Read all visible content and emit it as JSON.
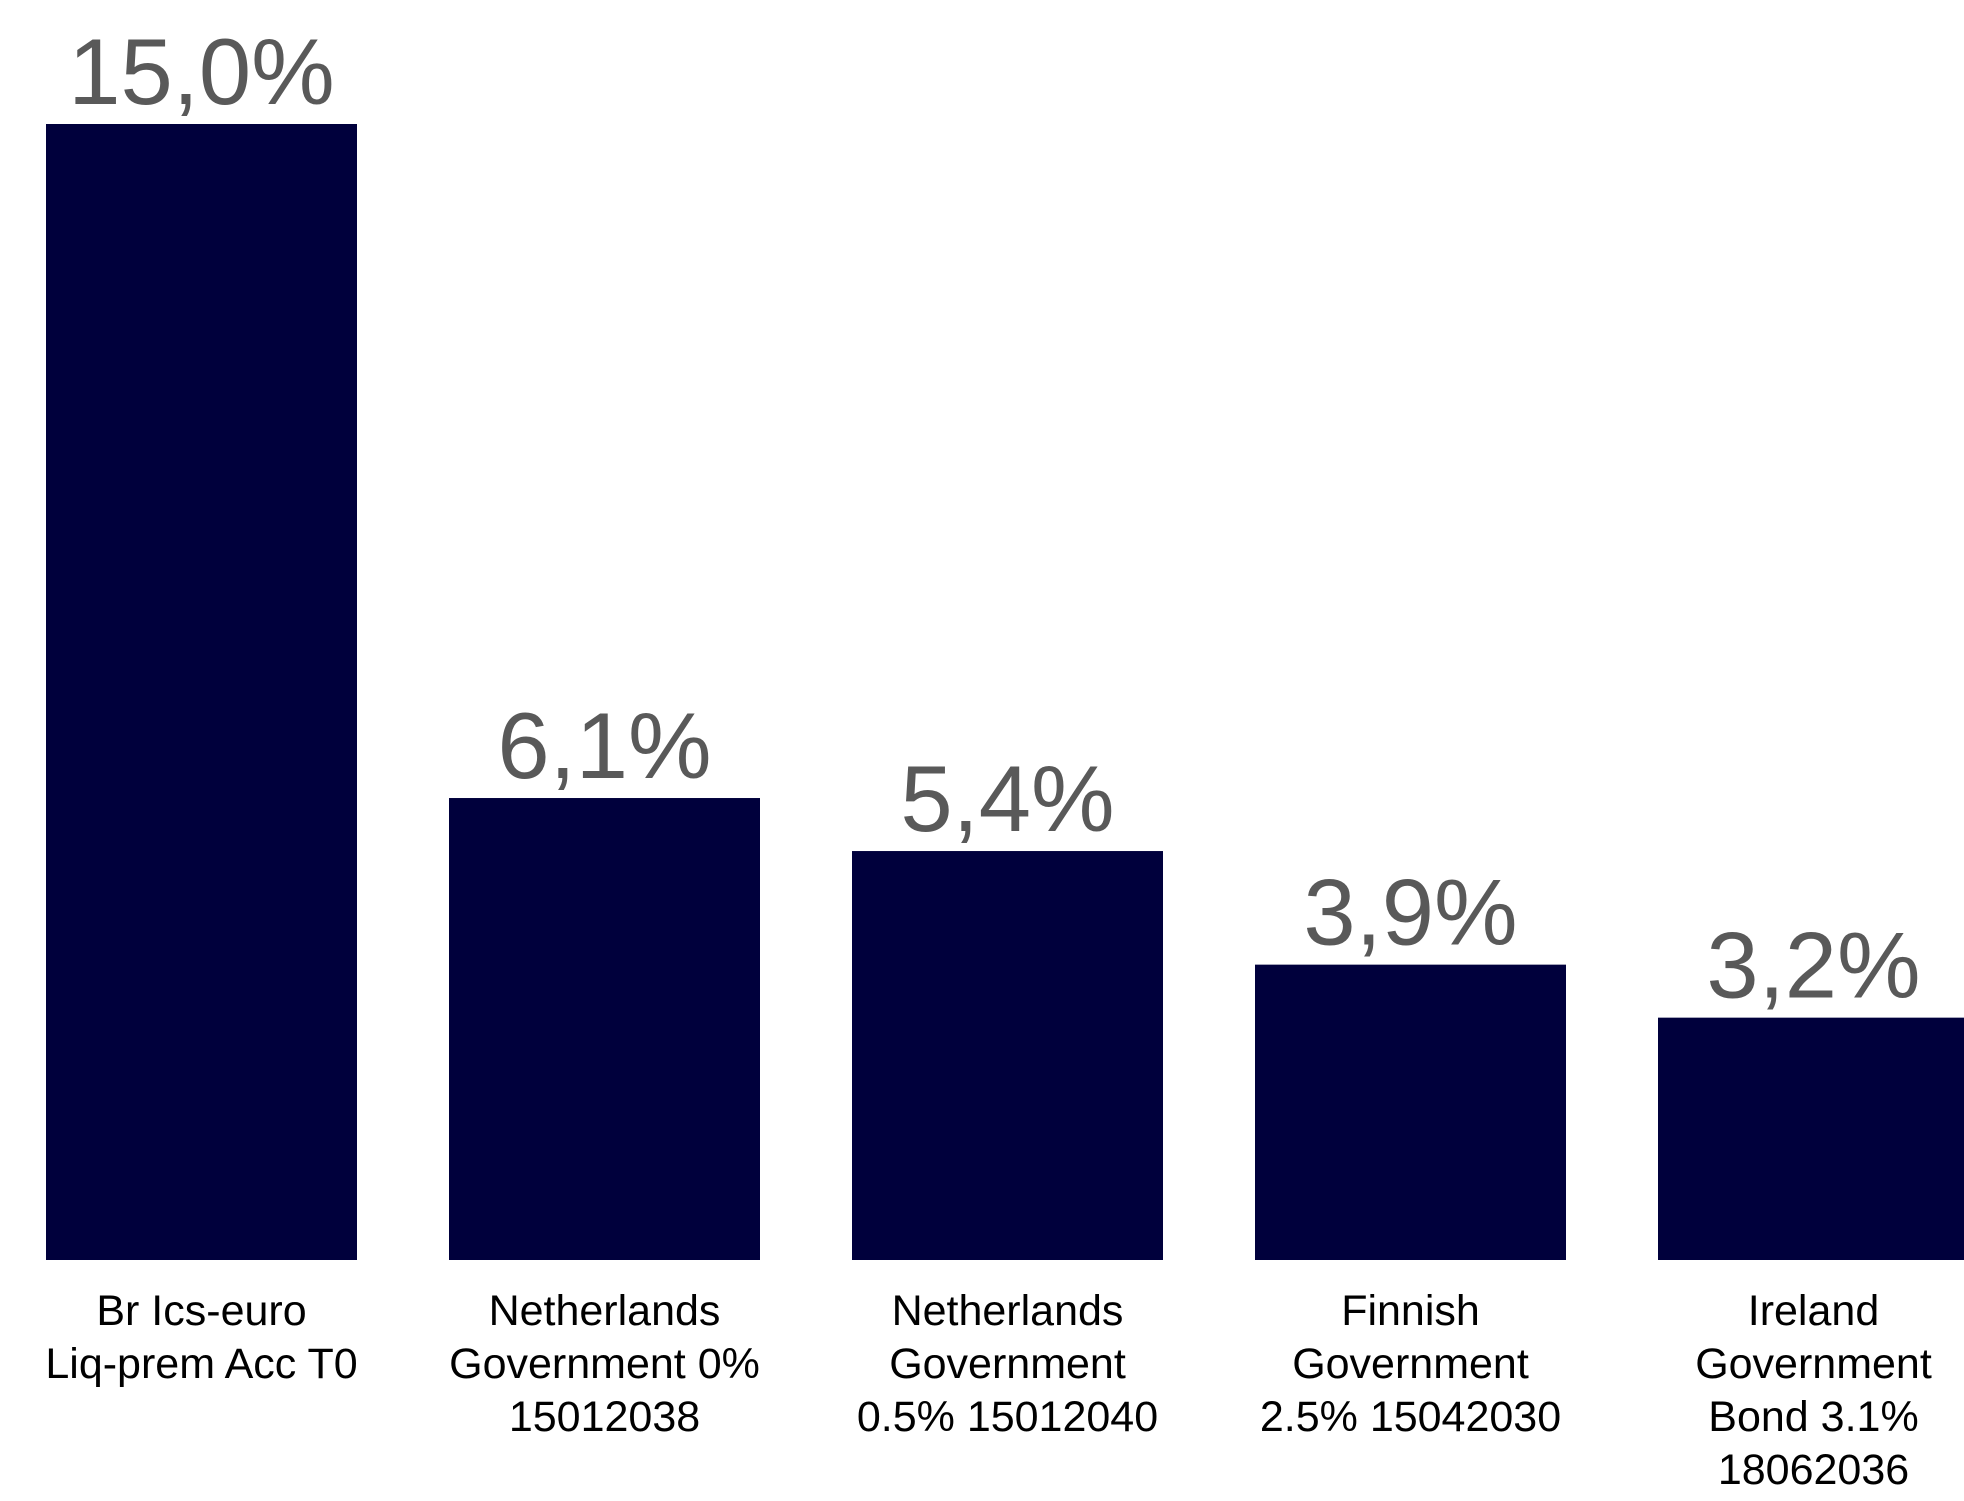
{
  "chart_data": {
    "type": "bar",
    "categories": [
      [
        "Br Ics-euro",
        "Liq-prem Acc T0"
      ],
      [
        "Netherlands",
        "Government 0%",
        "15012038"
      ],
      [
        "Netherlands",
        "Government",
        "0.5% 15012040"
      ],
      [
        "Finnish",
        "Government",
        "2.5% 15042030"
      ],
      [
        "Ireland",
        "Government",
        "Bond 3.1%",
        "18062036"
      ]
    ],
    "values": [
      15.0,
      6.1,
      5.4,
      3.9,
      3.2
    ],
    "value_labels": [
      "15,0%",
      "6,1%",
      "5,4%",
      "3,9%",
      "3,2%"
    ],
    "ylim": [
      0,
      15.0
    ],
    "grid": false,
    "colors": {
      "bar": "#00003c",
      "value_label": "#595959",
      "category_label": "#000000"
    }
  }
}
